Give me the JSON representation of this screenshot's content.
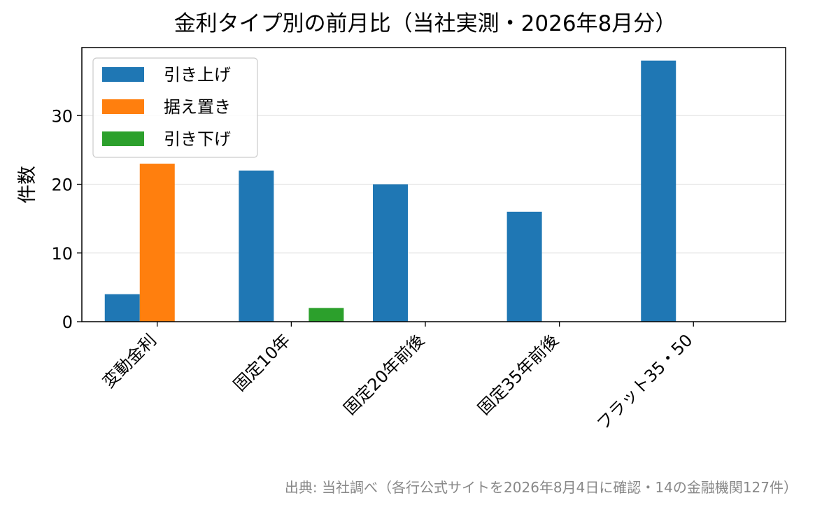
{
  "chart_data": {
    "type": "bar",
    "title": "金利タイプ別の前月比（当社実測・2026年8月分）",
    "xlabel": "",
    "ylabel": "件数",
    "categories": [
      "変動金利",
      "固定10年",
      "固定20年前後",
      "固定35年前後",
      "フラット35・50"
    ],
    "series": [
      {
        "name": "引き上げ",
        "color": "#1f77b4",
        "values": [
          4,
          22,
          20,
          16,
          38
        ]
      },
      {
        "name": "据え置き",
        "color": "#ff7f0e",
        "values": [
          23,
          0,
          0,
          0,
          0
        ]
      },
      {
        "name": "引き下げ",
        "color": "#2ca02c",
        "values": [
          0,
          2,
          0,
          0,
          0
        ]
      }
    ],
    "ylim": [
      0,
      39.9
    ],
    "yticks": [
      0,
      10,
      20,
      30
    ],
    "grid": "y",
    "legend": "top-left",
    "source_note": "出典: 当社調べ（各行公式サイトを2026年8月4日に確認・14の金融機関127件）"
  }
}
